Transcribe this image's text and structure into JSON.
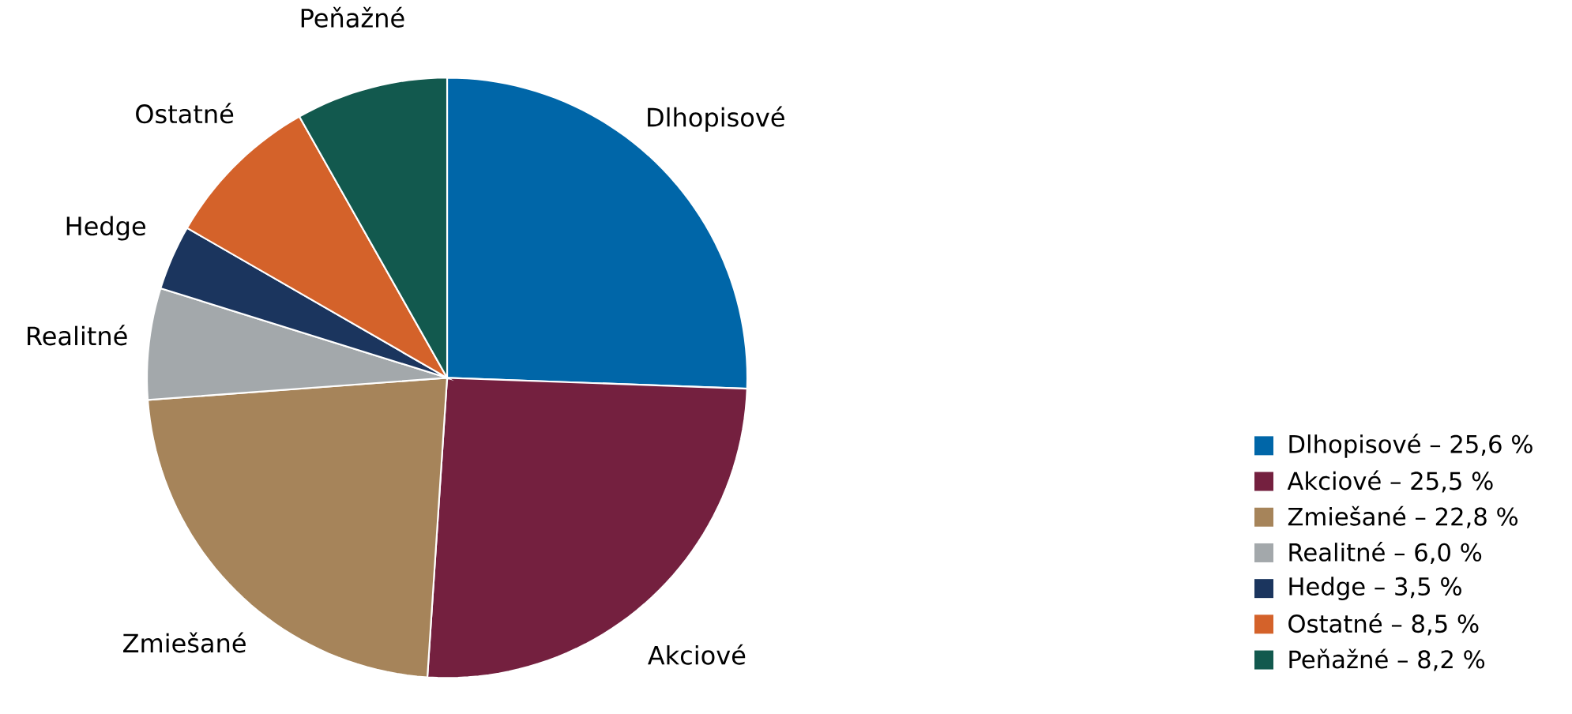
{
  "chart_data": {
    "type": "pie",
    "categories": [
      "Dlhopisové – 25,6 %",
      "Akciové – 25,5 %",
      "Zmiešané – 22,8 %",
      "Realitné – 6,0 %",
      "Hedge – 3,5 %",
      "Ostatné – 8,5 %",
      "Peňažné – 8,2 %"
    ],
    "values": [
      25.6,
      25.5,
      22.8,
      6.0,
      3.5,
      8.5,
      8.2
    ],
    "annotations": [
      "Dlhopisové",
      "Akciové",
      "Zmiešané",
      "Realitné",
      "Hedge",
      "Ostatné",
      "Peňažné"
    ],
    "colors": [
      "#0066a8",
      "#74203f",
      "#a6845a",
      "#a3a8ab",
      "#1b355e",
      "#d4622a",
      "#12594e"
    ],
    "legend": "bottom right"
  }
}
